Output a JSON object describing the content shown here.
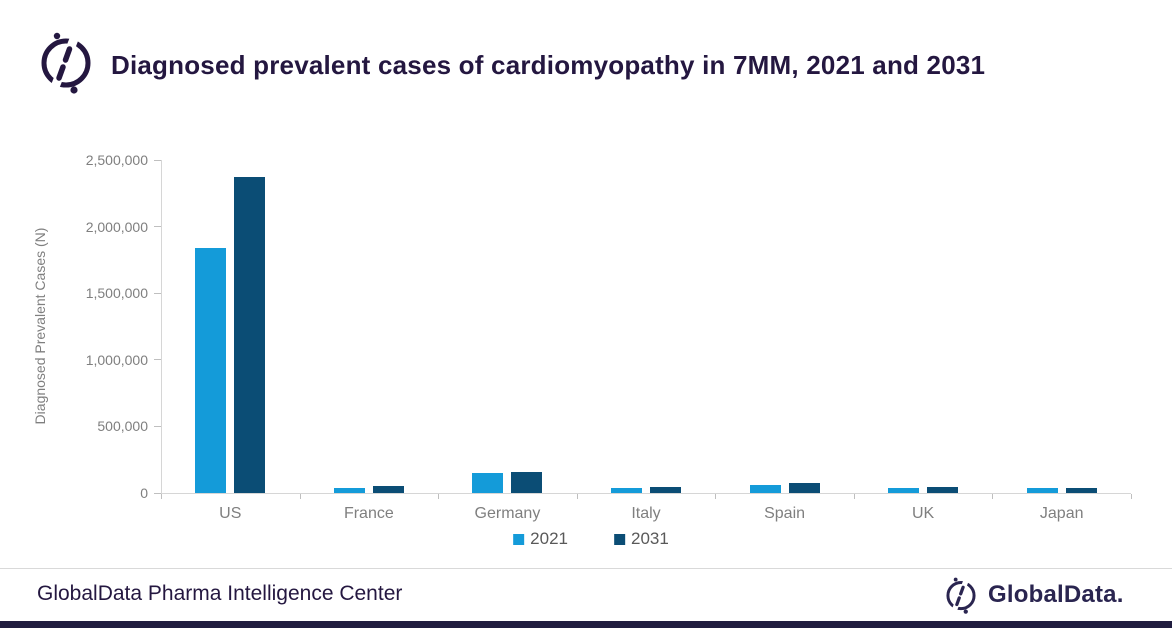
{
  "header": {
    "logo_icon": "globaldata-mark-icon"
  },
  "chart_data": {
    "type": "bar",
    "title": "Diagnosed prevalent cases of cardiomyopathy in 7MM, 2021 and 2031",
    "categories": [
      "US",
      "France",
      "Germany",
      "Italy",
      "Spain",
      "UK",
      "Japan"
    ],
    "series": [
      {
        "name": "2021",
        "color": "#149bd9",
        "values": [
          1840000,
          40000,
          148000,
          35000,
          62000,
          40000,
          40000
        ]
      },
      {
        "name": "2031",
        "color": "#0b4d75",
        "values": [
          2370000,
          55000,
          160000,
          43000,
          75000,
          47000,
          35000
        ]
      }
    ],
    "xlabel": "",
    "ylabel": "Diagnosed Prevalent  Cases (N)",
    "ylim": [
      0,
      2500000
    ],
    "ytick_step": 500000,
    "yticks": [
      "0",
      "500,000",
      "1,000,000",
      "1,500,000",
      "2,000,000",
      "2,500,000"
    ],
    "legend_position": "bottom",
    "grid": false
  },
  "colors": {
    "title_text": "#241740",
    "axis_text": "#7f7f7f",
    "axis_line": "#d6d6d6",
    "footer_text": "#241740",
    "bottom_bar": "#201c3f"
  },
  "footer": {
    "brand_text": "GlobalData Pharma Intelligence Center",
    "logo_text": "GlobalData.",
    "logo_icon": "globaldata-mark-icon"
  }
}
